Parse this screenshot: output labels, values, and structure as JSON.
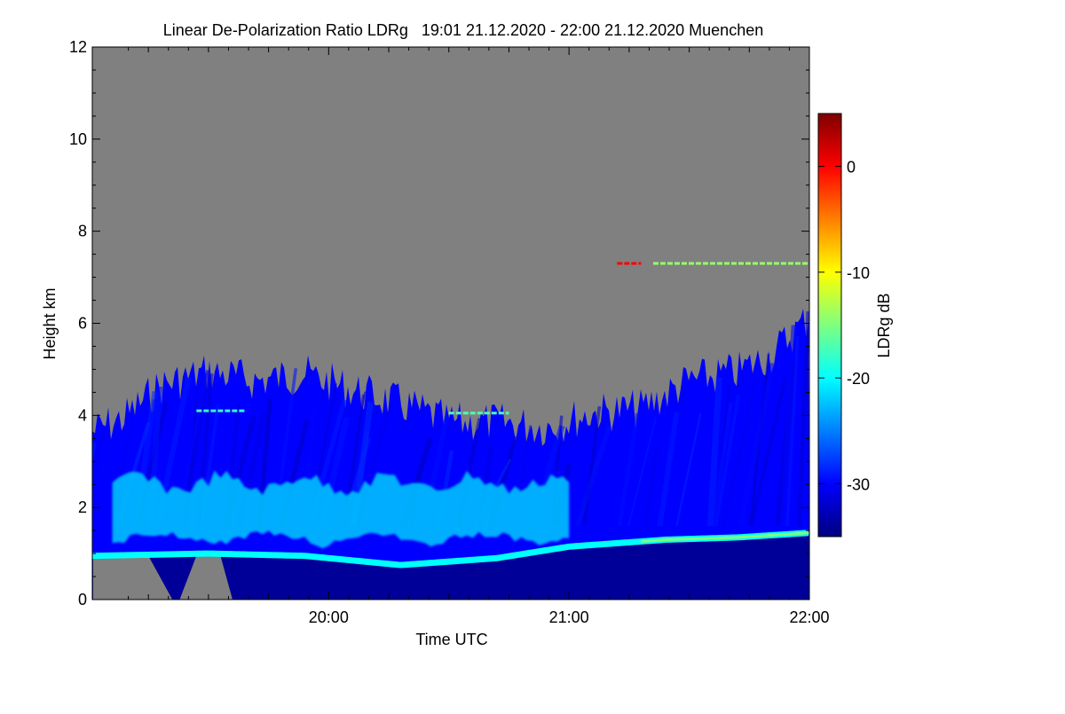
{
  "chart_data": {
    "type": "heatmap",
    "title": "Linear De-Polarization Ratio LDRg   19:01 21.12.2020 - 22:00 21.12.2020 Muenchen",
    "xlabel": "Time UTC",
    "ylabel": "Height km",
    "x_range_hours": [
      19.0167,
      22.0
    ],
    "x_ticks": [
      {
        "value": 20.0,
        "label": "20:00"
      },
      {
        "value": 21.0,
        "label": "21:00"
      },
      {
        "value": 22.0,
        "label": "22:00"
      }
    ],
    "ylim": [
      0,
      12
    ],
    "y_ticks": [
      0,
      2,
      4,
      6,
      8,
      10,
      12
    ],
    "colorbar": {
      "label": "LDRg dB",
      "range": [
        -35,
        5
      ],
      "ticks": [
        0,
        -10,
        -20,
        -30
      ]
    },
    "no_data_color": "#808080",
    "colormap": [
      "#00007f",
      "#0000ff",
      "#007fff",
      "#00ffff",
      "#7fff7f",
      "#ffff00",
      "#ff7f00",
      "#ff0000",
      "#7f0000"
    ],
    "cloud_top_km": [
      {
        "t": 19.02,
        "h": 4.1
      },
      {
        "t": 19.15,
        "h": 4.4
      },
      {
        "t": 19.3,
        "h": 5.1
      },
      {
        "t": 19.5,
        "h": 5.4
      },
      {
        "t": 19.7,
        "h": 5.2
      },
      {
        "t": 19.9,
        "h": 5.35
      },
      {
        "t": 20.1,
        "h": 5.0
      },
      {
        "t": 20.3,
        "h": 4.7
      },
      {
        "t": 20.5,
        "h": 4.3
      },
      {
        "t": 20.7,
        "h": 4.3
      },
      {
        "t": 20.9,
        "h": 4.2
      },
      {
        "t": 21.1,
        "h": 4.5
      },
      {
        "t": 21.3,
        "h": 4.6
      },
      {
        "t": 21.5,
        "h": 5.2
      },
      {
        "t": 21.7,
        "h": 5.4
      },
      {
        "t": 21.85,
        "h": 5.8
      },
      {
        "t": 22.0,
        "h": 6.6
      }
    ],
    "liquid_layer_km": [
      {
        "t": 19.02,
        "h": 0.95
      },
      {
        "t": 19.5,
        "h": 1.0
      },
      {
        "t": 19.9,
        "h": 0.95
      },
      {
        "t": 20.3,
        "h": 0.75
      },
      {
        "t": 20.7,
        "h": 0.9
      },
      {
        "t": 21.0,
        "h": 1.15
      },
      {
        "t": 21.4,
        "h": 1.3
      },
      {
        "t": 21.7,
        "h": 1.35
      },
      {
        "t": 22.0,
        "h": 1.45
      }
    ],
    "enhanced_band_km": {
      "bottom": 1.1,
      "top": 2.9,
      "t_start": 19.1,
      "t_end": 21.0
    },
    "thin_layers": [
      {
        "t_start": 19.45,
        "t_end": 19.65,
        "h": 4.1,
        "ldr": -18
      },
      {
        "t_start": 20.5,
        "t_end": 20.75,
        "h": 4.05,
        "ldr": -17
      },
      {
        "t_start": 21.2,
        "t_end": 21.3,
        "h": 7.3,
        "ldr": 0
      },
      {
        "t_start": 21.35,
        "t_end": 22.0,
        "h": 7.3,
        "ldr": -14
      }
    ]
  }
}
